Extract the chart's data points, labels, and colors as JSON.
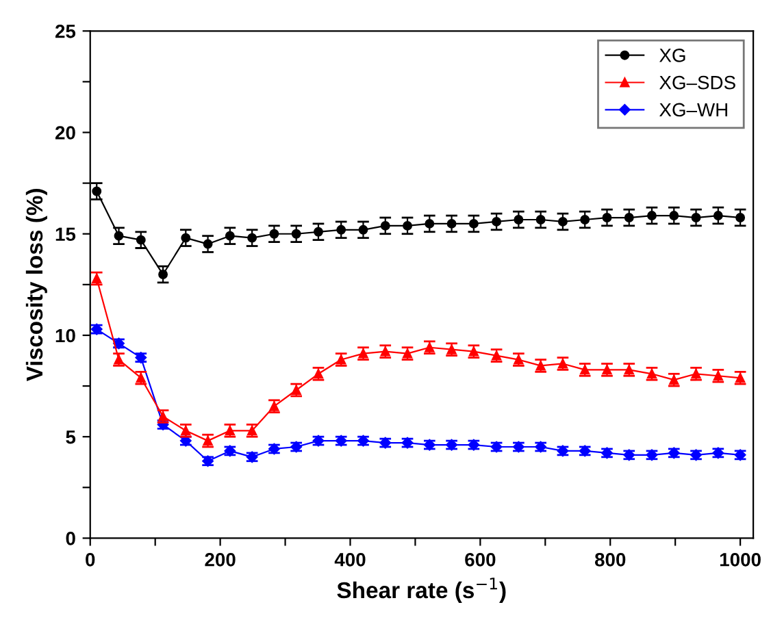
{
  "chart_data": {
    "type": "line",
    "xlabel": "Shear rate (s$^{−1}$)",
    "ylabel": "Viscosity loss (%)",
    "x": [
      10,
      44,
      78,
      112,
      147,
      181,
      215,
      249,
      283,
      317,
      351,
      386,
      420,
      454,
      488,
      522,
      556,
      590,
      625,
      659,
      693,
      727,
      761,
      795,
      829,
      864,
      898,
      932,
      966,
      1000
    ],
    "series": [
      {
        "name": "XG",
        "color": "#000000",
        "marker": "circle",
        "errors": [
          0.4,
          0.4,
          0.4,
          0.4,
          0.4,
          0.4,
          0.4,
          0.4,
          0.4,
          0.4,
          0.4,
          0.4,
          0.4,
          0.4,
          0.4,
          0.4,
          0.4,
          0.4,
          0.4,
          0.4,
          0.4,
          0.4,
          0.4,
          0.4,
          0.4,
          0.4,
          0.4,
          0.4,
          0.4,
          0.4
        ],
        "values": [
          17.1,
          14.9,
          14.7,
          13.0,
          14.8,
          14.5,
          14.9,
          14.8,
          15.0,
          15.0,
          15.1,
          15.2,
          15.2,
          15.4,
          15.4,
          15.5,
          15.5,
          15.5,
          15.6,
          15.7,
          15.7,
          15.6,
          15.7,
          15.8,
          15.8,
          15.9,
          15.9,
          15.8,
          15.9,
          15.8
        ]
      },
      {
        "name": "XG–SDS",
        "color": "#ff0000",
        "marker": "triangle",
        "errors": [
          0.3,
          0.3,
          0.3,
          0.3,
          0.3,
          0.3,
          0.3,
          0.3,
          0.3,
          0.3,
          0.3,
          0.3,
          0.3,
          0.3,
          0.3,
          0.3,
          0.3,
          0.3,
          0.3,
          0.3,
          0.3,
          0.3,
          0.3,
          0.3,
          0.3,
          0.3,
          0.3,
          0.3,
          0.3,
          0.3
        ],
        "values": [
          12.8,
          8.8,
          7.9,
          6.0,
          5.3,
          4.8,
          5.3,
          5.3,
          6.5,
          7.3,
          8.1,
          8.8,
          9.1,
          9.2,
          9.1,
          9.4,
          9.3,
          9.2,
          9.0,
          8.8,
          8.5,
          8.6,
          8.3,
          8.3,
          8.3,
          8.1,
          7.8,
          8.1,
          8.0,
          7.9
        ]
      },
      {
        "name": "XG–WH",
        "color": "#0000ff",
        "marker": "diamond",
        "errors": [
          0.2,
          0.2,
          0.2,
          0.2,
          0.2,
          0.2,
          0.2,
          0.2,
          0.2,
          0.2,
          0.2,
          0.2,
          0.2,
          0.2,
          0.2,
          0.2,
          0.2,
          0.2,
          0.2,
          0.2,
          0.2,
          0.2,
          0.2,
          0.2,
          0.2,
          0.2,
          0.2,
          0.2,
          0.2,
          0.2
        ],
        "values": [
          10.3,
          9.6,
          8.9,
          5.6,
          4.8,
          3.8,
          4.3,
          4.0,
          4.4,
          4.5,
          4.8,
          4.8,
          4.8,
          4.7,
          4.7,
          4.6,
          4.6,
          4.6,
          4.5,
          4.5,
          4.5,
          4.3,
          4.3,
          4.2,
          4.1,
          4.1,
          4.2,
          4.1,
          4.2,
          4.1
        ]
      }
    ],
    "xlim": [
      0,
      1020
    ],
    "ylim": [
      0,
      25
    ],
    "xticks": [
      0,
      {
        "value": 100,
        "label": null
      },
      200,
      {
        "value": 300,
        "label": null
      },
      400,
      {
        "value": 500,
        "label": null
      },
      600,
      {
        "value": 700,
        "label": null
      },
      800,
      {
        "value": 900,
        "label": null
      },
      1000
    ],
    "yticks": [
      0,
      {
        "value": 2.5,
        "label": null
      },
      5,
      {
        "value": 7.5,
        "label": null
      },
      10,
      {
        "value": 12.5,
        "label": null
      },
      15,
      {
        "value": 17.5,
        "label": null
      },
      20,
      {
        "value": 22.5,
        "label": null
      },
      25
    ],
    "grid": false,
    "legend": "top right",
    "line_style": "solid"
  }
}
